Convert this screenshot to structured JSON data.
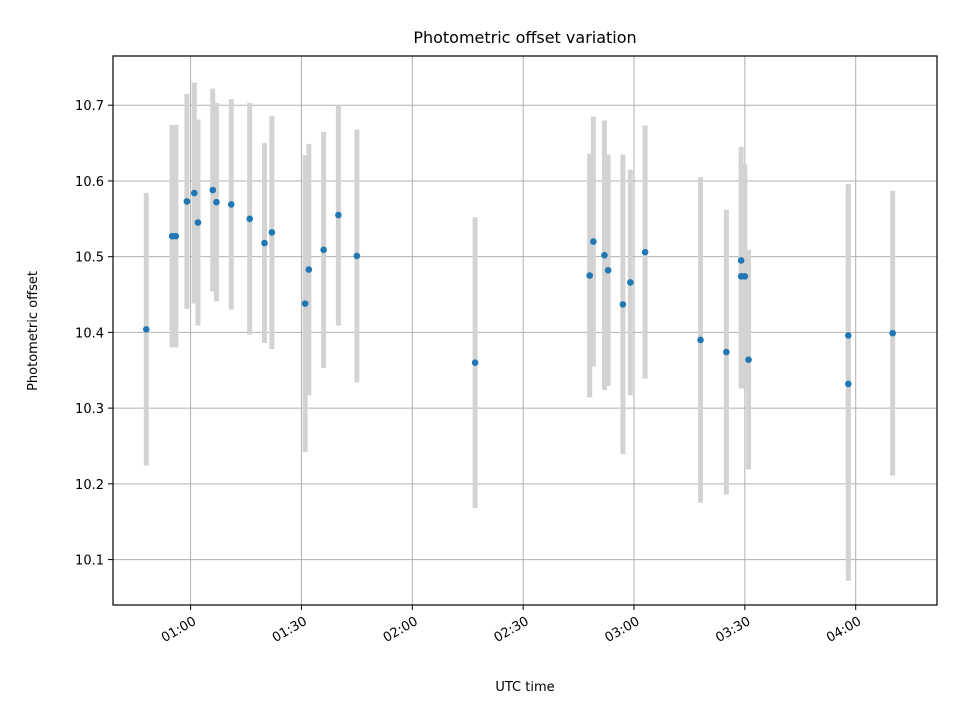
{
  "chart_data": {
    "type": "scatter",
    "title": "Photometric offset variation",
    "xlabel": "UTC time",
    "ylabel": "Photometric offset",
    "x_format": "HH:MM",
    "xlim": [
      "00:39",
      "04:22"
    ],
    "ylim": [
      10.04,
      10.765
    ],
    "grid": true,
    "x_ticks": [
      "01:00",
      "01:30",
      "02:00",
      "02:30",
      "03:00",
      "03:30",
      "04:00"
    ],
    "x_tick_labels": [
      "01:00",
      "01:30",
      "02:00",
      "02:30",
      "03:00",
      "03:30",
      "04:00"
    ],
    "y_ticks": [
      10.1,
      10.2,
      10.3,
      10.4,
      10.5,
      10.6,
      10.7
    ],
    "y_tick_labels": [
      "10.1",
      "10.2",
      "10.3",
      "10.4",
      "10.5",
      "10.6",
      "10.7"
    ],
    "colors": {
      "points": "#1f77b4",
      "errorbars": "#d3d3d3",
      "grid": "#b0b0b0"
    },
    "series": [
      {
        "points": [
          {
            "x": "00:48",
            "y": 10.404,
            "err": 0.18
          },
          {
            "x": "00:55",
            "y": 10.527,
            "err": 0.147
          },
          {
            "x": "00:56",
            "y": 10.527,
            "err": 0.147
          },
          {
            "x": "00:59",
            "y": 10.573,
            "err": 0.142
          },
          {
            "x": "01:01",
            "y": 10.584,
            "err": 0.146
          },
          {
            "x": "01:02",
            "y": 10.545,
            "err": 0.136
          },
          {
            "x": "01:06",
            "y": 10.588,
            "err": 0.134
          },
          {
            "x": "01:07",
            "y": 10.572,
            "err": 0.131
          },
          {
            "x": "01:11",
            "y": 10.569,
            "err": 0.139
          },
          {
            "x": "01:16",
            "y": 10.55,
            "err": 0.153
          },
          {
            "x": "01:20",
            "y": 10.518,
            "err": 0.132
          },
          {
            "x": "01:22",
            "y": 10.532,
            "err": 0.154
          },
          {
            "x": "01:31",
            "y": 10.438,
            "err": 0.196
          },
          {
            "x": "01:32",
            "y": 10.483,
            "err": 0.166
          },
          {
            "x": "01:36",
            "y": 10.509,
            "err": 0.156
          },
          {
            "x": "01:40",
            "y": 10.555,
            "err": 0.146
          },
          {
            "x": "01:45",
            "y": 10.501,
            "err": 0.167
          },
          {
            "x": "02:17",
            "y": 10.36,
            "err": 0.192
          },
          {
            "x": "02:48",
            "y": 10.475,
            "err": 0.161
          },
          {
            "x": "02:49",
            "y": 10.52,
            "err": 0.165
          },
          {
            "x": "02:52",
            "y": 10.502,
            "err": 0.178
          },
          {
            "x": "02:53",
            "y": 10.482,
            "err": 0.153
          },
          {
            "x": "02:57",
            "y": 10.437,
            "err": 0.198
          },
          {
            "x": "02:59",
            "y": 10.466,
            "err": 0.149
          },
          {
            "x": "03:03",
            "y": 10.506,
            "err": 0.167
          },
          {
            "x": "03:18",
            "y": 10.39,
            "err": 0.215
          },
          {
            "x": "03:25",
            "y": 10.374,
            "err": 0.188
          },
          {
            "x": "03:29",
            "y": 10.495,
            "err": 0.15
          },
          {
            "x": "03:29",
            "y": 10.474,
            "err": 0.148
          },
          {
            "x": "03:30",
            "y": 10.474,
            "err": 0.148
          },
          {
            "x": "03:31",
            "y": 10.364,
            "err": 0.145
          },
          {
            "x": "03:58",
            "y": 10.332,
            "err": 0.26
          },
          {
            "x": "03:58",
            "y": 10.396,
            "err": 0.2
          },
          {
            "x": "04:10",
            "y": 10.399,
            "err": 0.188
          }
        ]
      }
    ]
  }
}
